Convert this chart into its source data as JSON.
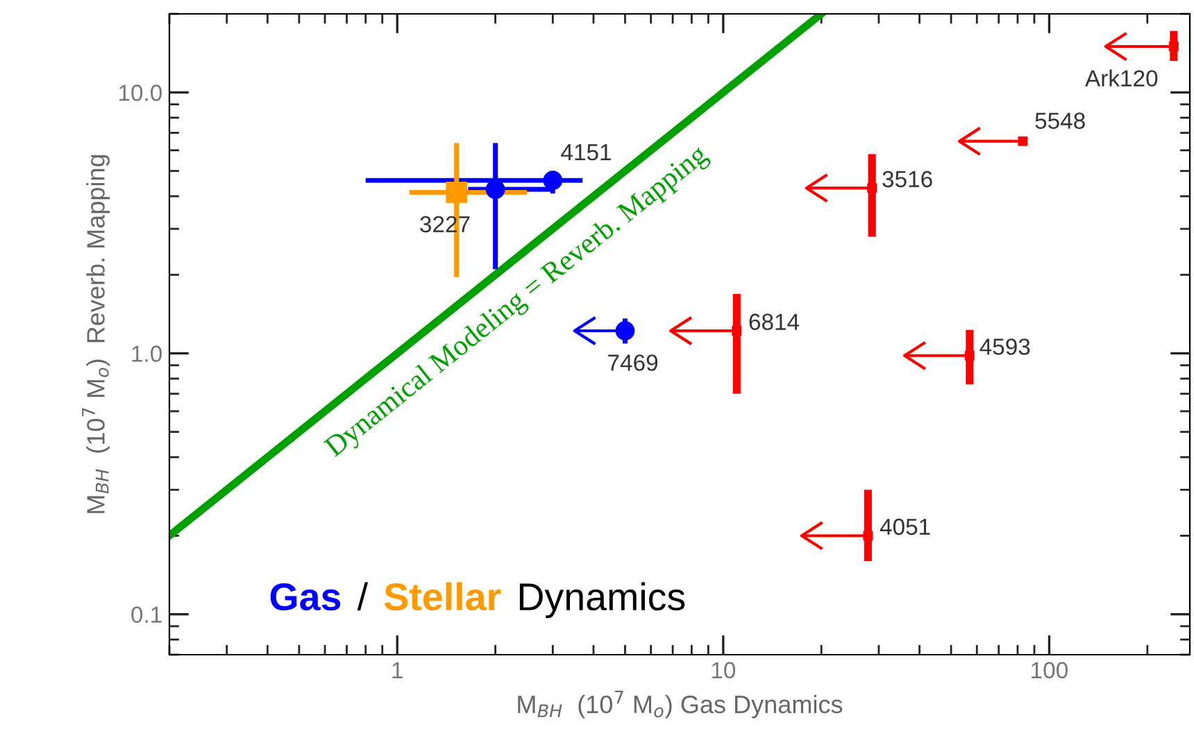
{
  "chart_data": {
    "type": "scatter",
    "xlabel": "M$_{BH}$  (10$^{7}$ M$_{o}$) Gas Dynamics",
    "ylabel": "M$_{BH}$  (10$^{7}$ M$_{o}$)  Reverb. Mapping",
    "log": "xy",
    "grid": false,
    "legend": "bottom left",
    "xlim": [
      0.2,
      270
    ],
    "xticks": [
      1,
      10,
      100
    ],
    "ylim": [
      0.07,
      20
    ],
    "yticks": [
      {
        "value": 0.1,
        "label": "0.1"
      },
      {
        "value": 1,
        "label": "1.0"
      },
      {
        "value": 10,
        "label": "10.0"
      }
    ],
    "series": [
      {
        "name": "Gas",
        "color": "#0000ff",
        "marker": "circle",
        "x": [
          2.0,
          3.0
        ],
        "values": [
          4.25,
          4.6
        ],
        "errors": [
          [
            2.1,
            6.4
          ],
          [
            4.1,
            5.0
          ]
        ],
        "xerrors": [
          [
            1.65,
            3.0
          ],
          [
            0.8,
            3.7
          ]
        ]
      },
      {
        "color": "#0000ff",
        "marker": "circle",
        "x": [
          5.0
        ],
        "values": [
          1.22
        ],
        "errors": [
          [
            1.09,
            1.36
          ]
        ],
        "xerrors": [
          [
            3.5,
            5.0
          ]
        ]
      },
      {
        "name": "Stellar",
        "color": "#ff9900",
        "marker": "square",
        "x": [
          1.52
        ],
        "values": [
          4.14
        ],
        "errors": [
          [
            1.96,
            6.4
          ]
        ],
        "xerrors": [
          [
            1.09,
            2.5
          ]
        ]
      },
      {
        "color": "#ff0000",
        "marker": "square",
        "x": [
          241,
          83,
          28.6,
          11.0,
          57,
          27.8
        ],
        "values": [
          15,
          6.5,
          4.3,
          1.22,
          0.98,
          0.2
        ],
        "errors": [
          [
            13.2,
            17.2
          ],
          [
            6.3,
            6.7
          ],
          [
            2.8,
            5.8
          ],
          [
            0.7,
            1.69
          ],
          [
            0.76,
            1.23
          ],
          [
            0.16,
            0.3
          ]
        ],
        "xerrors": [
          [
            149,
            241
          ],
          [
            53,
            83
          ],
          [
            18,
            28.6
          ],
          [
            6.9,
            11.0
          ],
          [
            36,
            57
          ],
          [
            17.4,
            27.8
          ]
        ]
      },
      {
        "name": "Dynamical Modeling = Reverb. Mapping",
        "type": "line",
        "color": "#00a000",
        "marker": "none",
        "x": [
          0.2,
          20
        ],
        "values": [
          0.2,
          20
        ]
      }
    ],
    "annotations": [
      "/",
      "Dynamics",
      {
        "text": "4151",
        "x": 3.0,
        "y": 4.6
      },
      {
        "text": "3227",
        "x": 1.52,
        "y": 4.14
      },
      {
        "text": "7469",
        "x": 5.0,
        "y": 1.22
      },
      {
        "text": "Ark120",
        "x": 241,
        "y": 15
      },
      {
        "text": "5548",
        "x": 83,
        "y": 6.5
      },
      {
        "text": "3516",
        "x": 28.6,
        "y": 4.3
      },
      {
        "text": "6814",
        "x": 11.0,
        "y": 1.22
      },
      {
        "text": "4593",
        "x": 57,
        "y": 0.98
      },
      {
        "text": "4051",
        "x": 27.8,
        "y": 0.2
      }
    ]
  }
}
